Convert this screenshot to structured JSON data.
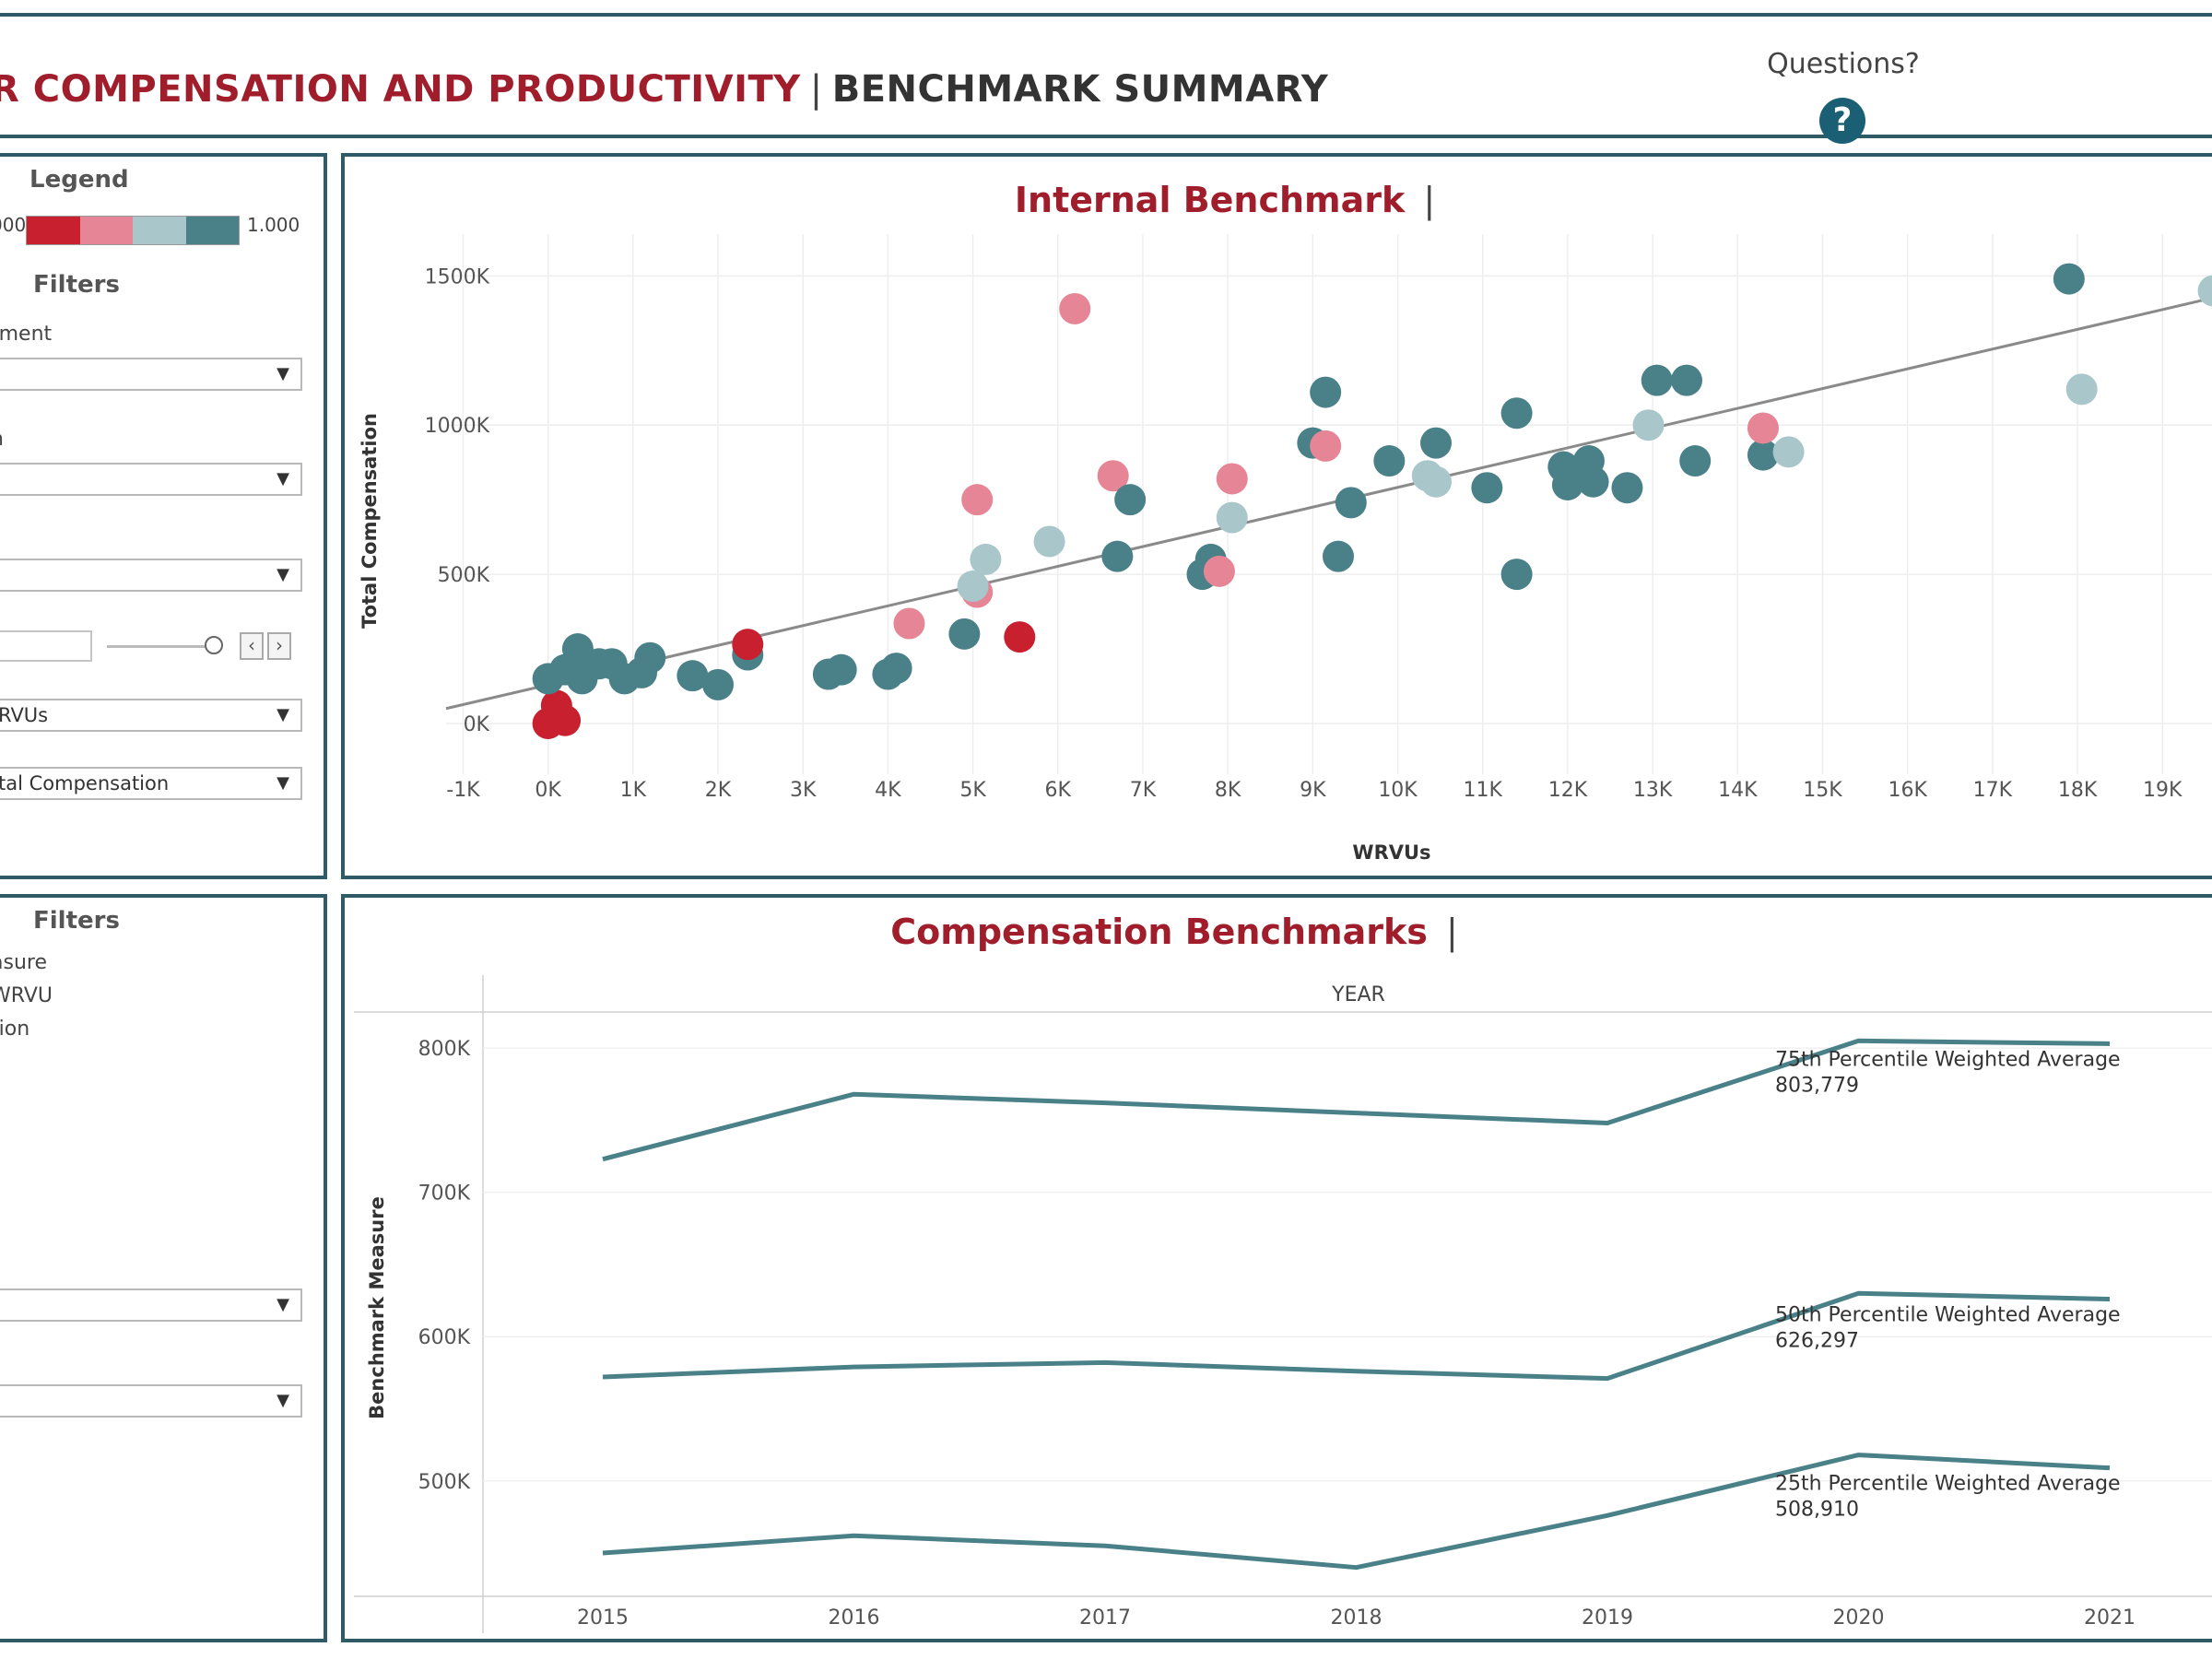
{
  "header": {
    "title_main": "R COMPENSATION AND PRODUCTIVITY",
    "title_sep": "|",
    "title_sub": "BENCHMARK SUMMARY",
    "questions_label": "Questions?",
    "help_icon": "question-circle-icon"
  },
  "left_top": {
    "legend_title": "Legend",
    "legend_min": "000",
    "legend_max": "1.000",
    "legend_colors": [
      "#c8202f",
      "#e68595",
      "#a9c6cb",
      "#4a8189"
    ],
    "filters_title": "Filters",
    "label_1": "tment",
    "label_2": "n",
    "dropdown_1": "",
    "dropdown_2": "",
    "dropdown_3": "",
    "textbox_value": "",
    "dropdown_x": "RVUs",
    "dropdown_y": "tal Compensation"
  },
  "left_bottom": {
    "filters_title": "Filters",
    "item_1": "asure",
    "item_2": "WRVU",
    "item_3": "tion",
    "dropdown_1": "",
    "dropdown_2": ""
  },
  "scatter": {
    "title": "Internal Benchmark",
    "title_bar": "|",
    "chart_data": {
      "type": "scatter",
      "xlabel": "WRVUs",
      "ylabel": "Total Compensation",
      "x_ticks": [
        "-1K",
        "0K",
        "1K",
        "2K",
        "3K",
        "4K",
        "5K",
        "6K",
        "7K",
        "8K",
        "9K",
        "10K",
        "11K",
        "12K",
        "13K",
        "14K",
        "15K",
        "16K",
        "17K",
        "18K",
        "19K"
      ],
      "y_ticks": [
        "0K",
        "500K",
        "1000K",
        "1500K"
      ],
      "xlim": [
        -1.2,
        19.8
      ],
      "ylim": [
        -170,
        1640
      ],
      "trendline": [
        [
          -1.2,
          50
        ],
        [
          19.8,
          1440
        ]
      ],
      "colors": {
        "red": "#c8202f",
        "pink": "#e68595",
        "light": "#a9c6cb",
        "teal": "#4a8189"
      },
      "points": [
        {
          "x": 0.0,
          "y": 0,
          "c": "red"
        },
        {
          "x": 0.2,
          "y": 10,
          "c": "red"
        },
        {
          "x": 0.1,
          "y": 60,
          "c": "red"
        },
        {
          "x": 0.0,
          "y": 150,
          "c": "teal"
        },
        {
          "x": 0.2,
          "y": 180,
          "c": "teal"
        },
        {
          "x": 0.35,
          "y": 250,
          "c": "teal"
        },
        {
          "x": 0.4,
          "y": 150,
          "c": "teal"
        },
        {
          "x": 0.6,
          "y": 200,
          "c": "teal"
        },
        {
          "x": 0.75,
          "y": 200,
          "c": "teal"
        },
        {
          "x": 0.9,
          "y": 150,
          "c": "teal"
        },
        {
          "x": 1.1,
          "y": 170,
          "c": "teal"
        },
        {
          "x": 1.2,
          "y": 220,
          "c": "teal"
        },
        {
          "x": 1.7,
          "y": 160,
          "c": "teal"
        },
        {
          "x": 2.0,
          "y": 130,
          "c": "teal"
        },
        {
          "x": 2.35,
          "y": 230,
          "c": "teal"
        },
        {
          "x": 2.35,
          "y": 265,
          "c": "red"
        },
        {
          "x": 3.3,
          "y": 165,
          "c": "teal"
        },
        {
          "x": 3.45,
          "y": 180,
          "c": "teal"
        },
        {
          "x": 4.0,
          "y": 165,
          "c": "teal"
        },
        {
          "x": 4.1,
          "y": 185,
          "c": "teal"
        },
        {
          "x": 4.25,
          "y": 335,
          "c": "pink"
        },
        {
          "x": 4.9,
          "y": 300,
          "c": "teal"
        },
        {
          "x": 5.05,
          "y": 440,
          "c": "pink"
        },
        {
          "x": 5.0,
          "y": 460,
          "c": "light"
        },
        {
          "x": 5.15,
          "y": 550,
          "c": "light"
        },
        {
          "x": 5.05,
          "y": 750,
          "c": "pink"
        },
        {
          "x": 5.55,
          "y": 290,
          "c": "red"
        },
        {
          "x": 5.9,
          "y": 610,
          "c": "light"
        },
        {
          "x": 6.2,
          "y": 1390,
          "c": "pink"
        },
        {
          "x": 6.7,
          "y": 560,
          "c": "teal"
        },
        {
          "x": 6.65,
          "y": 830,
          "c": "pink"
        },
        {
          "x": 6.85,
          "y": 750,
          "c": "teal"
        },
        {
          "x": 7.7,
          "y": 500,
          "c": "teal"
        },
        {
          "x": 7.8,
          "y": 550,
          "c": "teal"
        },
        {
          "x": 7.9,
          "y": 510,
          "c": "pink"
        },
        {
          "x": 8.05,
          "y": 690,
          "c": "light"
        },
        {
          "x": 8.05,
          "y": 820,
          "c": "pink"
        },
        {
          "x": 9.0,
          "y": 940,
          "c": "teal"
        },
        {
          "x": 9.15,
          "y": 930,
          "c": "pink"
        },
        {
          "x": 9.15,
          "y": 1110,
          "c": "teal"
        },
        {
          "x": 9.3,
          "y": 560,
          "c": "teal"
        },
        {
          "x": 9.45,
          "y": 740,
          "c": "teal"
        },
        {
          "x": 9.9,
          "y": 880,
          "c": "teal"
        },
        {
          "x": 10.35,
          "y": 830,
          "c": "light"
        },
        {
          "x": 10.45,
          "y": 810,
          "c": "light"
        },
        {
          "x": 10.45,
          "y": 940,
          "c": "teal"
        },
        {
          "x": 11.05,
          "y": 790,
          "c": "teal"
        },
        {
          "x": 11.4,
          "y": 500,
          "c": "teal"
        },
        {
          "x": 11.4,
          "y": 1040,
          "c": "teal"
        },
        {
          "x": 11.95,
          "y": 860,
          "c": "teal"
        },
        {
          "x": 12.0,
          "y": 800,
          "c": "teal"
        },
        {
          "x": 12.1,
          "y": 840,
          "c": "teal"
        },
        {
          "x": 12.25,
          "y": 880,
          "c": "teal"
        },
        {
          "x": 12.3,
          "y": 810,
          "c": "teal"
        },
        {
          "x": 12.7,
          "y": 790,
          "c": "teal"
        },
        {
          "x": 12.95,
          "y": 1000,
          "c": "light"
        },
        {
          "x": 13.05,
          "y": 1150,
          "c": "teal"
        },
        {
          "x": 13.4,
          "y": 1150,
          "c": "teal"
        },
        {
          "x": 13.5,
          "y": 880,
          "c": "teal"
        },
        {
          "x": 14.3,
          "y": 900,
          "c": "teal"
        },
        {
          "x": 14.3,
          "y": 990,
          "c": "pink"
        },
        {
          "x": 14.6,
          "y": 910,
          "c": "light"
        },
        {
          "x": 17.9,
          "y": 1490,
          "c": "teal"
        },
        {
          "x": 18.05,
          "y": 1120,
          "c": "light"
        },
        {
          "x": 19.6,
          "y": 1450,
          "c": "light"
        }
      ]
    }
  },
  "lines": {
    "title": "Compensation Benchmarks",
    "title_bar": "|",
    "header_label": "YEAR",
    "chart_data": {
      "type": "line",
      "ylabel": "Benchmark Measure",
      "categories": [
        "2015",
        "2016",
        "2017",
        "2018",
        "2019",
        "2020",
        "2021"
      ],
      "y_ticks": [
        "500K",
        "600K",
        "700K",
        "800K"
      ],
      "ylim": [
        420,
        825
      ],
      "series": [
        {
          "name": "75th Percentile Weighted Average",
          "value_label": "803,779",
          "values": [
            723,
            768,
            762,
            755,
            748,
            805,
            803
          ]
        },
        {
          "name": "50th Percentile Weighted Average",
          "value_label": "626,297",
          "values": [
            572,
            579,
            582,
            576,
            571,
            630,
            626
          ]
        },
        {
          "name": "25th Percentile Weighted Average",
          "value_label": "508,910",
          "values": [
            450,
            462,
            455,
            440,
            476,
            518,
            509
          ]
        }
      ],
      "line_color": "#4a8189"
    }
  }
}
